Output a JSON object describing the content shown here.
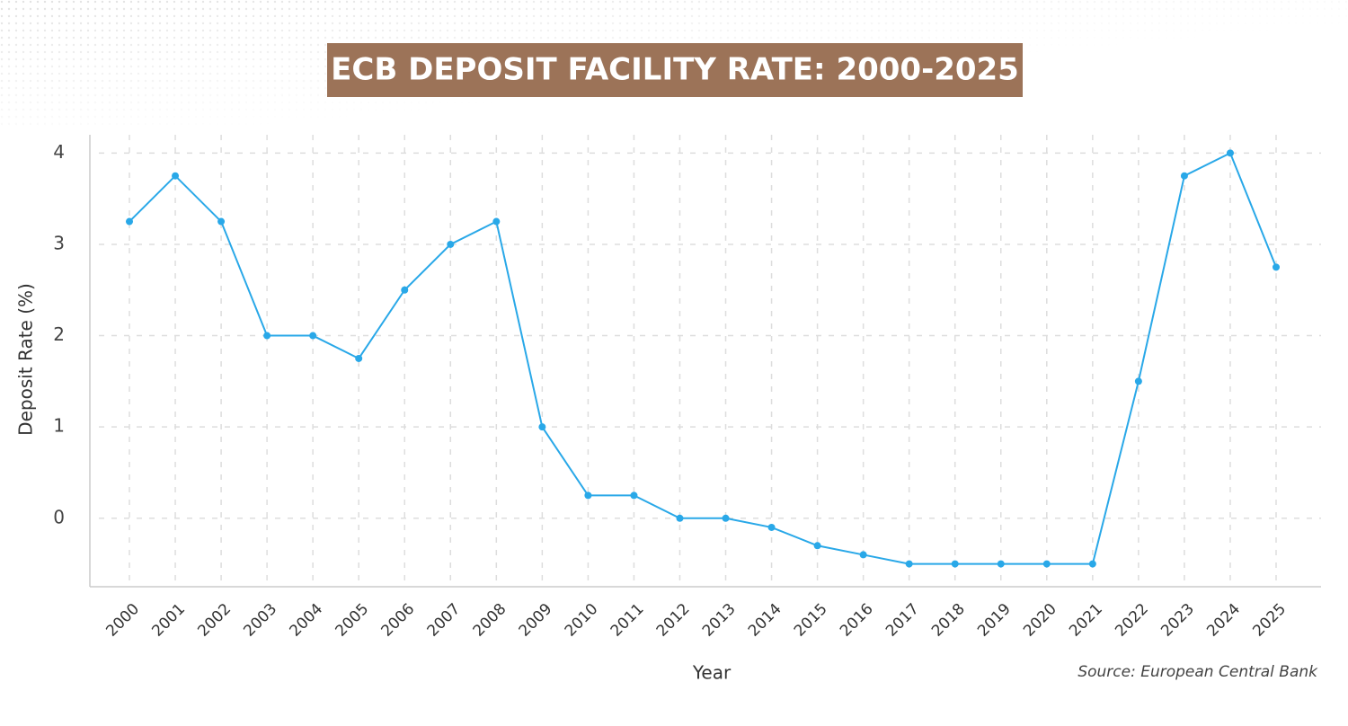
{
  "chart_data": {
    "type": "line",
    "title": "ECB DEPOSIT FACILITY RATE: 2000-2025",
    "x_label": "Year",
    "y_label": "Deposit Rate (%)",
    "source": "Source: European Central Bank",
    "categories": [
      "2000",
      "2001",
      "2002",
      "2003",
      "2004",
      "2005",
      "2006",
      "2007",
      "2008",
      "2009",
      "2010",
      "2011",
      "2012",
      "2013",
      "2014",
      "2015",
      "2016",
      "2017",
      "2018",
      "2019",
      "2020",
      "2021",
      "2022",
      "2023",
      "2024",
      "2025"
    ],
    "series": [
      {
        "name": "Deposit Rate",
        "color": "#29a8e8",
        "values": [
          3.25,
          3.75,
          3.25,
          2.0,
          2.0,
          1.75,
          2.5,
          3.0,
          3.25,
          1.0,
          0.25,
          0.25,
          0.0,
          0.0,
          -0.1,
          -0.3,
          -0.4,
          -0.5,
          -0.5,
          -0.5,
          -0.5,
          -0.5,
          1.5,
          3.75,
          4.0,
          2.75
        ]
      }
    ],
    "ylim": [
      -0.75,
      4.2
    ],
    "yticks": [
      0,
      1,
      2,
      3,
      4
    ],
    "grid": true
  }
}
